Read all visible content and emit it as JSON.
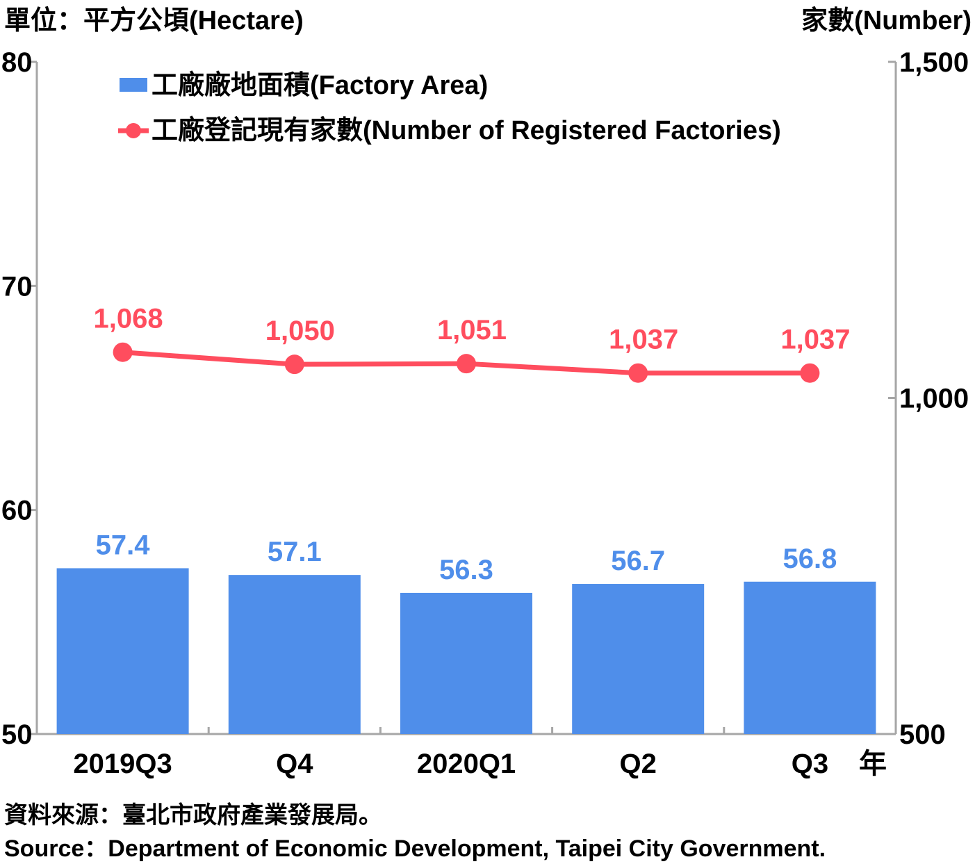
{
  "chart_data": {
    "type": "bar+line",
    "left_axis_unit": "單位：平方公頃(Hectare)",
    "right_axis_unit": "家數(Number)",
    "x_unit": "年",
    "categories": [
      "2019Q3",
      "Q4",
      "2020Q1",
      "Q2",
      "Q3"
    ],
    "y_left": {
      "ylim": [
        50,
        80
      ],
      "ticks": [
        "50",
        "60",
        "70",
        "80"
      ]
    },
    "y_right": {
      "ylim": [
        500,
        1500
      ],
      "ticks": [
        "500",
        "1,000",
        "1,500"
      ]
    },
    "series": [
      {
        "name": "工廠廠地面積(Factory Area)",
        "kind": "bar",
        "axis": "left",
        "color": "#4f8eea",
        "values": [
          57.4,
          57.1,
          56.3,
          56.7,
          56.8
        ],
        "labels": [
          "57.4",
          "57.1",
          "56.3",
          "56.7",
          "56.8"
        ]
      },
      {
        "name": "工廠登記現有家數(Number of Registered Factories)",
        "kind": "line",
        "axis": "right",
        "color": "#ff4d5e",
        "values": [
          1068,
          1050,
          1051,
          1037,
          1037
        ],
        "labels": [
          "1,068",
          "1,050",
          "1,051",
          "1,037",
          "1,037"
        ]
      }
    ],
    "legend_position": "top-left",
    "grid": false
  },
  "source_zh": "資料來源：臺北市政府產業發展局。",
  "source_en": "Source：Department of Economic Development, Taipei City Government."
}
